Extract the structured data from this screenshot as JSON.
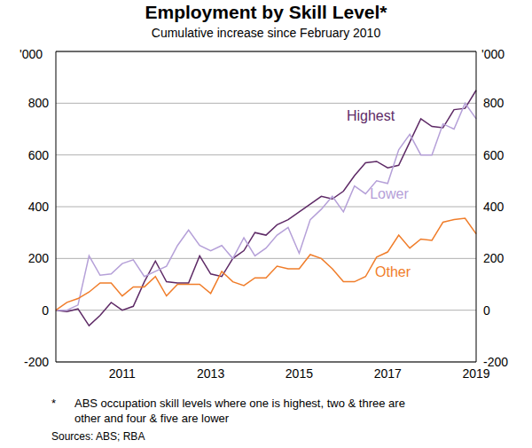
{
  "chart_data": {
    "type": "line",
    "title": "Employment by Skill Level*",
    "subtitle": "Cumulative increase since February 2010",
    "y_label": "'000",
    "y2_label": "'000",
    "categories": [
      null,
      null,
      null,
      null,
      null,
      null,
      "2011",
      null,
      null,
      null,
      null,
      null,
      null,
      null,
      "2013",
      null,
      null,
      null,
      null,
      null,
      null,
      null,
      "2015",
      null,
      null,
      null,
      null,
      null,
      null,
      null,
      "2017",
      null,
      null,
      null,
      null,
      null,
      null,
      null,
      "2019"
    ],
    "series": [
      {
        "name": "Highest",
        "color": "#5e2a66",
        "values": [
          0,
          -5,
          5,
          -60,
          -20,
          30,
          0,
          15,
          110,
          190,
          110,
          105,
          105,
          210,
          140,
          130,
          200,
          230,
          300,
          290,
          330,
          350,
          380,
          410,
          440,
          430,
          460,
          520,
          570,
          575,
          550,
          560,
          650,
          740,
          710,
          705,
          775,
          780,
          850
        ]
      },
      {
        "name": "Lower",
        "color": "#b5a0d8",
        "values": [
          0,
          0,
          20,
          210,
          135,
          140,
          180,
          195,
          130,
          150,
          170,
          250,
          310,
          250,
          230,
          250,
          200,
          280,
          210,
          240,
          290,
          320,
          220,
          350,
          390,
          440,
          380,
          480,
          450,
          500,
          490,
          620,
          680,
          600,
          600,
          720,
          700,
          800,
          740
        ]
      },
      {
        "name": "Other",
        "color": "#f07d2a",
        "values": [
          0,
          30,
          45,
          70,
          105,
          105,
          55,
          90,
          90,
          130,
          55,
          100,
          100,
          100,
          65,
          150,
          110,
          95,
          125,
          125,
          170,
          160,
          160,
          215,
          200,
          160,
          110,
          110,
          130,
          205,
          225,
          290,
          240,
          275,
          270,
          340,
          350,
          355,
          295
        ]
      }
    ],
    "ylim": [
      -200,
      1000
    ],
    "yticks": [
      -200,
      0,
      200,
      400,
      600,
      800
    ],
    "y2lim": [
      -200,
      1000
    ],
    "y2ticks": [
      -200,
      0,
      200,
      400,
      600,
      800
    ],
    "grid": true,
    "notes": {
      "mark": "*",
      "lines": [
        "ABS occupation skill levels where one is highest, two & three are",
        "other and four & five are lower"
      ]
    },
    "source": "Sources: ABS; RBA"
  }
}
